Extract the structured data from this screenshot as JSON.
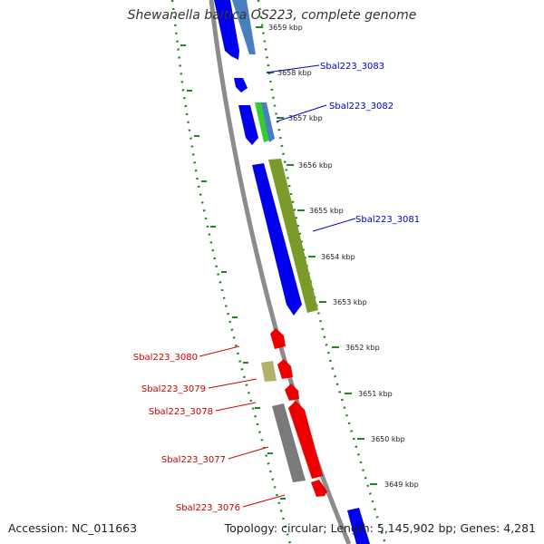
{
  "title": "Shewanella baltica OS223, complete genome",
  "footer": {
    "accession": "Accession: NC_011663",
    "summary": "Topology: circular; Length: 5,145,902 bp; Genes: 4,281"
  },
  "ticks": [
    "3659 kbp",
    "3658 kbp",
    "3657 kbp",
    "3656 kbp",
    "3655 kbp",
    "3654 kbp",
    "3653 kbp",
    "3652 kbp",
    "3651 kbp",
    "3650 kbp",
    "3649 kbp"
  ],
  "gene_labels_forward": [
    "Sbal223_3083",
    "Sbal223_3082",
    "Sbal223_3081"
  ],
  "gene_labels_reverse": [
    "Sbal223_3080",
    "Sbal223_3079",
    "Sbal223_3078",
    "Sbal223_3077",
    "Sbal223_3076"
  ],
  "colors": {
    "forward_label": "#0000cc",
    "reverse_label": "#cc0000",
    "blue_gene": "#0000ee",
    "steel_gene": "#4a7fbf",
    "red_gene": "#ee0000",
    "olive_gene": "#7a9a2a",
    "khaki_gene": "#b3b06a",
    "gray_gene": "#7a7a7a",
    "green_gene": "#33cc33",
    "backbone": "#8c8c8c",
    "dotted_ring": "#228822"
  }
}
